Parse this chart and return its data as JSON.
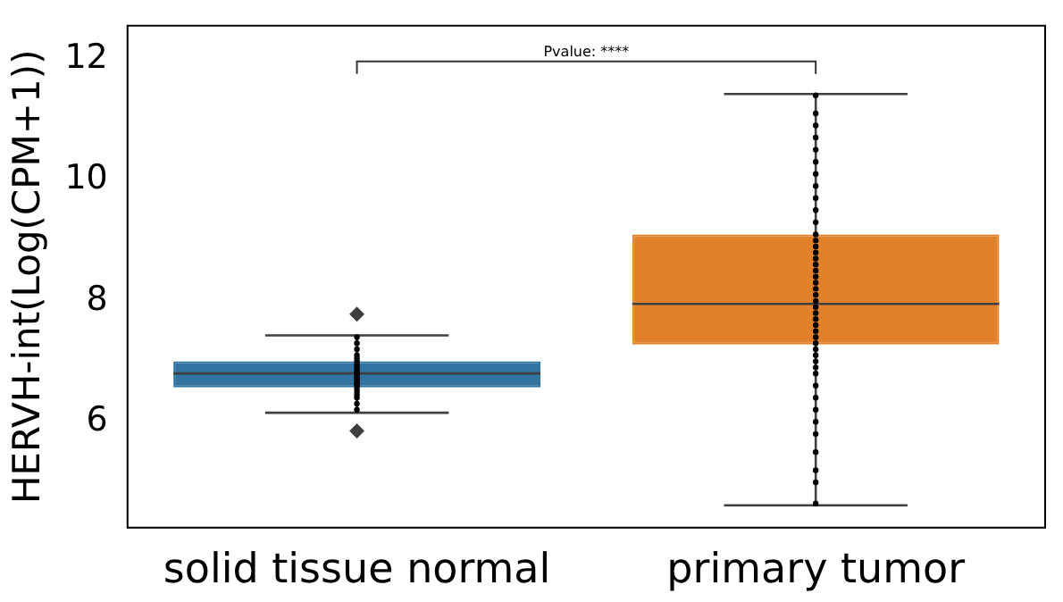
{
  "chart_data": {
    "type": "box",
    "ylabel": "HERVH-int(Log(CPM+1))",
    "categories": [
      "solid tissue normal",
      "primary tumor"
    ],
    "colors": [
      "#3274a1",
      "#e1812c"
    ],
    "boxes": [
      {
        "low": 6.15,
        "q1": 6.57,
        "median": 6.8,
        "q3": 7.0,
        "high": 7.43,
        "outliers": [
          7.78,
          5.85
        ]
      },
      {
        "low": 4.62,
        "q1": 7.28,
        "median": 7.95,
        "q3": 9.1,
        "high": 11.42
      }
    ],
    "series": [
      {
        "type": "scatter",
        "color": "#000000",
        "x": [
          "solid tissue normal",
          "solid tissue normal",
          "solid tissue normal",
          "solid tissue normal",
          "solid tissue normal",
          "solid tissue normal",
          "solid tissue normal",
          "solid tissue normal",
          "solid tissue normal",
          "solid tissue normal",
          "solid tissue normal",
          "solid tissue normal",
          "solid tissue normal",
          "solid tissue normal",
          "solid tissue normal",
          "solid tissue normal",
          "solid tissue normal",
          "solid tissue normal",
          "solid tissue normal",
          "solid tissue normal",
          "solid tissue normal",
          "solid tissue normal",
          "solid tissue normal",
          "primary tumor",
          "primary tumor",
          "primary tumor",
          "primary tumor",
          "primary tumor",
          "primary tumor",
          "primary tumor",
          "primary tumor",
          "primary tumor",
          "primary tumor",
          "primary tumor",
          "primary tumor",
          "primary tumor",
          "primary tumor",
          "primary tumor",
          "primary tumor",
          "primary tumor",
          "primary tumor",
          "primary tumor",
          "primary tumor",
          "primary tumor",
          "primary tumor",
          "primary tumor",
          "primary tumor",
          "primary tumor",
          "primary tumor",
          "primary tumor",
          "primary tumor",
          "primary tumor",
          "primary tumor",
          "primary tumor",
          "primary tumor",
          "primary tumor",
          "primary tumor",
          "primary tumor",
          "primary tumor",
          "primary tumor",
          "primary tumor",
          "primary tumor",
          "primary tumor",
          "primary tumor",
          "primary tumor",
          "primary tumor",
          "primary tumor"
        ],
        "values": [
          6.2,
          6.3,
          6.4,
          6.45,
          6.5,
          6.55,
          6.6,
          6.62,
          6.65,
          6.7,
          6.72,
          6.75,
          6.8,
          6.82,
          6.85,
          6.9,
          6.95,
          7.0,
          7.05,
          7.1,
          7.2,
          7.3,
          7.4,
          4.65,
          5.0,
          5.2,
          5.5,
          5.8,
          6.0,
          6.2,
          6.4,
          6.6,
          6.8,
          6.9,
          7.0,
          7.1,
          7.2,
          7.3,
          7.4,
          7.5,
          7.6,
          7.7,
          7.8,
          7.9,
          8.0,
          8.1,
          8.2,
          8.3,
          8.4,
          8.5,
          8.6,
          8.7,
          8.8,
          8.9,
          9.0,
          9.1,
          9.3,
          9.5,
          9.7,
          9.9,
          10.1,
          10.3,
          10.5,
          10.7,
          10.9,
          11.1,
          11.4
        ]
      }
    ],
    "ylim": [
      4.25,
      12.55
    ],
    "yticks": [
      6,
      8,
      10,
      12
    ],
    "grid": false,
    "legend": false,
    "annotations": [
      "Pvalue: ****"
    ]
  }
}
